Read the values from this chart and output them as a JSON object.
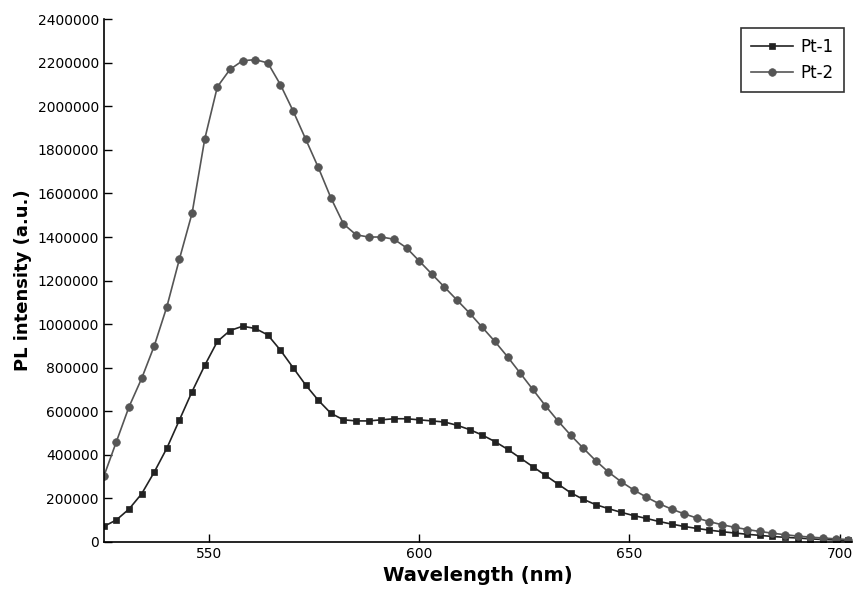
{
  "title": "",
  "xlabel": "Wavelength (nm)",
  "ylabel": "PL intensity (a.u.)",
  "xlim": [
    525,
    703
  ],
  "ylim": [
    0,
    2400000
  ],
  "yticks": [
    0,
    200000,
    400000,
    600000,
    800000,
    1000000,
    1200000,
    1400000,
    1600000,
    1800000,
    2000000,
    2200000,
    2400000
  ],
  "xticks": [
    550,
    600,
    650,
    700
  ],
  "legend_labels": [
    "Pt-1",
    "Pt-2"
  ],
  "background_color": "#ffffff",
  "line_color_pt1": "#222222",
  "line_color_pt2": "#555555",
  "pt1_x": [
    525,
    528,
    531,
    534,
    537,
    540,
    543,
    546,
    549,
    552,
    555,
    558,
    561,
    564,
    567,
    570,
    573,
    576,
    579,
    582,
    585,
    588,
    591,
    594,
    597,
    600,
    603,
    606,
    609,
    612,
    615,
    618,
    621,
    624,
    627,
    630,
    633,
    636,
    639,
    642,
    645,
    648,
    651,
    654,
    657,
    660,
    663,
    666,
    669,
    672,
    675,
    678,
    681,
    684,
    687,
    690,
    693,
    696,
    699,
    702
  ],
  "pt1_y": [
    70000,
    100000,
    150000,
    220000,
    320000,
    430000,
    560000,
    690000,
    810000,
    920000,
    970000,
    990000,
    980000,
    950000,
    880000,
    800000,
    720000,
    650000,
    590000,
    560000,
    555000,
    555000,
    560000,
    565000,
    565000,
    560000,
    555000,
    550000,
    535000,
    515000,
    490000,
    460000,
    425000,
    385000,
    345000,
    305000,
    265000,
    225000,
    195000,
    170000,
    152000,
    135000,
    120000,
    107000,
    93000,
    81000,
    70000,
    61000,
    53000,
    46000,
    40000,
    34000,
    29000,
    24000,
    20000,
    17000,
    13000,
    10000,
    8000,
    6000
  ],
  "pt2_x": [
    525,
    528,
    531,
    534,
    537,
    540,
    543,
    546,
    549,
    552,
    555,
    558,
    561,
    564,
    567,
    570,
    573,
    576,
    579,
    582,
    585,
    588,
    591,
    594,
    597,
    600,
    603,
    606,
    609,
    612,
    615,
    618,
    621,
    624,
    627,
    630,
    633,
    636,
    639,
    642,
    645,
    648,
    651,
    654,
    657,
    660,
    663,
    666,
    669,
    672,
    675,
    678,
    681,
    684,
    687,
    690,
    693,
    696,
    699,
    702
  ],
  "pt2_y": [
    300000,
    460000,
    620000,
    750000,
    900000,
    1080000,
    1300000,
    1510000,
    1850000,
    2090000,
    2170000,
    2210000,
    2215000,
    2200000,
    2100000,
    1980000,
    1850000,
    1720000,
    1580000,
    1460000,
    1410000,
    1400000,
    1400000,
    1390000,
    1350000,
    1290000,
    1230000,
    1170000,
    1110000,
    1050000,
    985000,
    920000,
    850000,
    775000,
    700000,
    625000,
    555000,
    490000,
    430000,
    372000,
    320000,
    276000,
    238000,
    205000,
    175000,
    150000,
    128000,
    109000,
    92000,
    78000,
    66000,
    56000,
    47000,
    39000,
    32000,
    26000,
    21000,
    17000,
    13000,
    10000
  ]
}
